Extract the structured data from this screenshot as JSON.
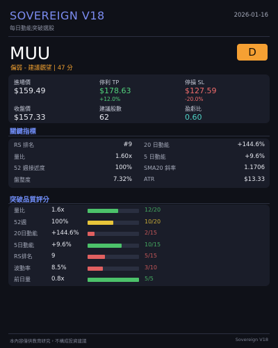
{
  "header": {
    "title": "SOVEREIGN V18",
    "subtitle": "每日動能突破選股",
    "date": "2026-01-16"
  },
  "stock": {
    "ticker": "MUU",
    "rating": "偏弱 - 建議觀望 | 47 分",
    "grade": "D"
  },
  "price_panel": {
    "items": [
      {
        "label": "進場價",
        "value": "$159.49",
        "color": "#e6e8ef"
      },
      {
        "label": "停利 TP",
        "value": "$178.63",
        "change": "+12.0%",
        "color": "#52d17c"
      },
      {
        "label": "停損 SL",
        "value": "$127.59",
        "change": "-20.0%",
        "color": "#ef6b6b"
      },
      {
        "label": "收盤價",
        "value": "$157.33",
        "color": "#e6e8ef"
      },
      {
        "label": "建議股數",
        "value": "62",
        "color": "#e6e8ef"
      },
      {
        "label": "盈虧比",
        "value": "0.60",
        "color": "#4fd1c5"
      }
    ]
  },
  "metrics": {
    "title": "關鍵指標",
    "rows": [
      [
        {
          "label": "RS 排名",
          "value": "#9"
        },
        {
          "label": "20 日動能",
          "value": "+144.6%"
        }
      ],
      [
        {
          "label": "量比",
          "value": "1.60x"
        },
        {
          "label": "5 日動能",
          "value": "+9.6%"
        }
      ],
      [
        {
          "label": "52 週接近度",
          "value": "100%"
        },
        {
          "label": "SMA20 斜率",
          "value": "1.1706"
        }
      ],
      [
        {
          "label": "盤整度",
          "value": "7.32%"
        },
        {
          "label": "ATR",
          "value": "$13.33"
        }
      ]
    ]
  },
  "score_panel": {
    "title": "突破品質評分",
    "rows": [
      {
        "label": "量比",
        "value": "1.6x",
        "score": "12/20",
        "color": "#4cc26a"
      },
      {
        "label": "52週",
        "value": "100%",
        "score": "10/20",
        "color": "#e8c53a"
      },
      {
        "label": "20日動能",
        "value": "+144.6%",
        "score": "2/15",
        "color": "#e06060"
      },
      {
        "label": "5日動能",
        "value": "+9.6%",
        "score": "10/15",
        "color": "#4cc26a"
      },
      {
        "label": "RS排名",
        "value": "9",
        "score": "5/15",
        "color": "#e06060"
      },
      {
        "label": "波動率",
        "value": "8.5%",
        "score": "3/10",
        "color": "#e06060"
      },
      {
        "label": "前日量",
        "value": "0.8x",
        "score": "5/5",
        "color": "#4cc26a"
      }
    ]
  },
  "footer": {
    "disclaimer": "本內容僅供教育研究，不構成投資建議",
    "brand": "Sovereign V18"
  }
}
